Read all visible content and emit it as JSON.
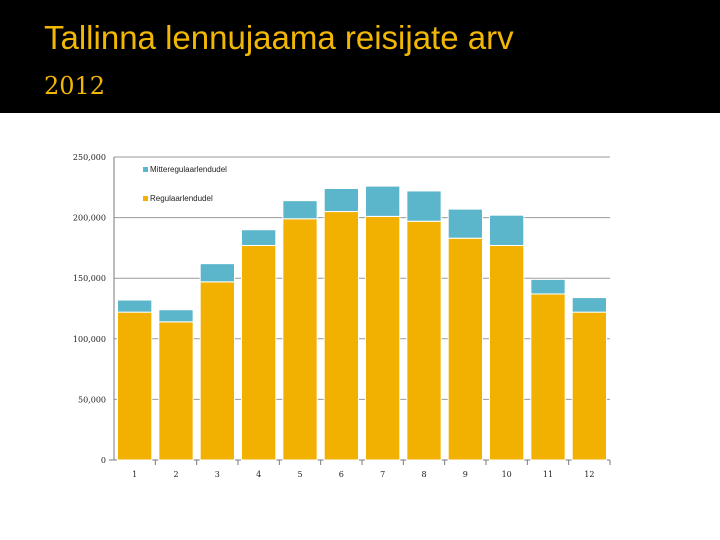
{
  "slide": {
    "title": "Tallinna lennujaama reisijate arv",
    "subtitle": "2012"
  },
  "colors": {
    "background": "#000000",
    "title": "#f2b705",
    "regular": "#f2b000",
    "irregular": "#5bb6cc",
    "chart_bg": "#ffffff"
  },
  "chart_data": {
    "type": "bar",
    "stacked": true,
    "title": "",
    "xlabel": "",
    "ylabel": "",
    "categories": [
      "1",
      "2",
      "3",
      "4",
      "5",
      "6",
      "7",
      "8",
      "9",
      "10",
      "11",
      "12"
    ],
    "series": [
      {
        "name": "Regulaarlendudel",
        "color": "#f2b000",
        "values": [
          122000,
          114000,
          147000,
          177000,
          199000,
          205000,
          201000,
          197000,
          183000,
          177000,
          137000,
          122000
        ]
      },
      {
        "name": "Mitteregulaarlendudel",
        "color": "#5bb6cc",
        "values": [
          10000,
          10000,
          15000,
          13000,
          15000,
          19000,
          25000,
          25000,
          24000,
          25000,
          12000,
          12000
        ]
      }
    ],
    "ylim": [
      0,
      250000
    ],
    "yticks": [
      0,
      50000,
      100000,
      150000,
      200000,
      250000
    ],
    "ytick_labels": [
      "0",
      "50,000",
      "100,000",
      "150,000",
      "200,000",
      "250,000"
    ],
    "grid": true,
    "legend": {
      "placement": "top-left inside plot",
      "order": [
        "Mitteregulaarlendudel",
        "Regulaarlendudel"
      ]
    }
  }
}
